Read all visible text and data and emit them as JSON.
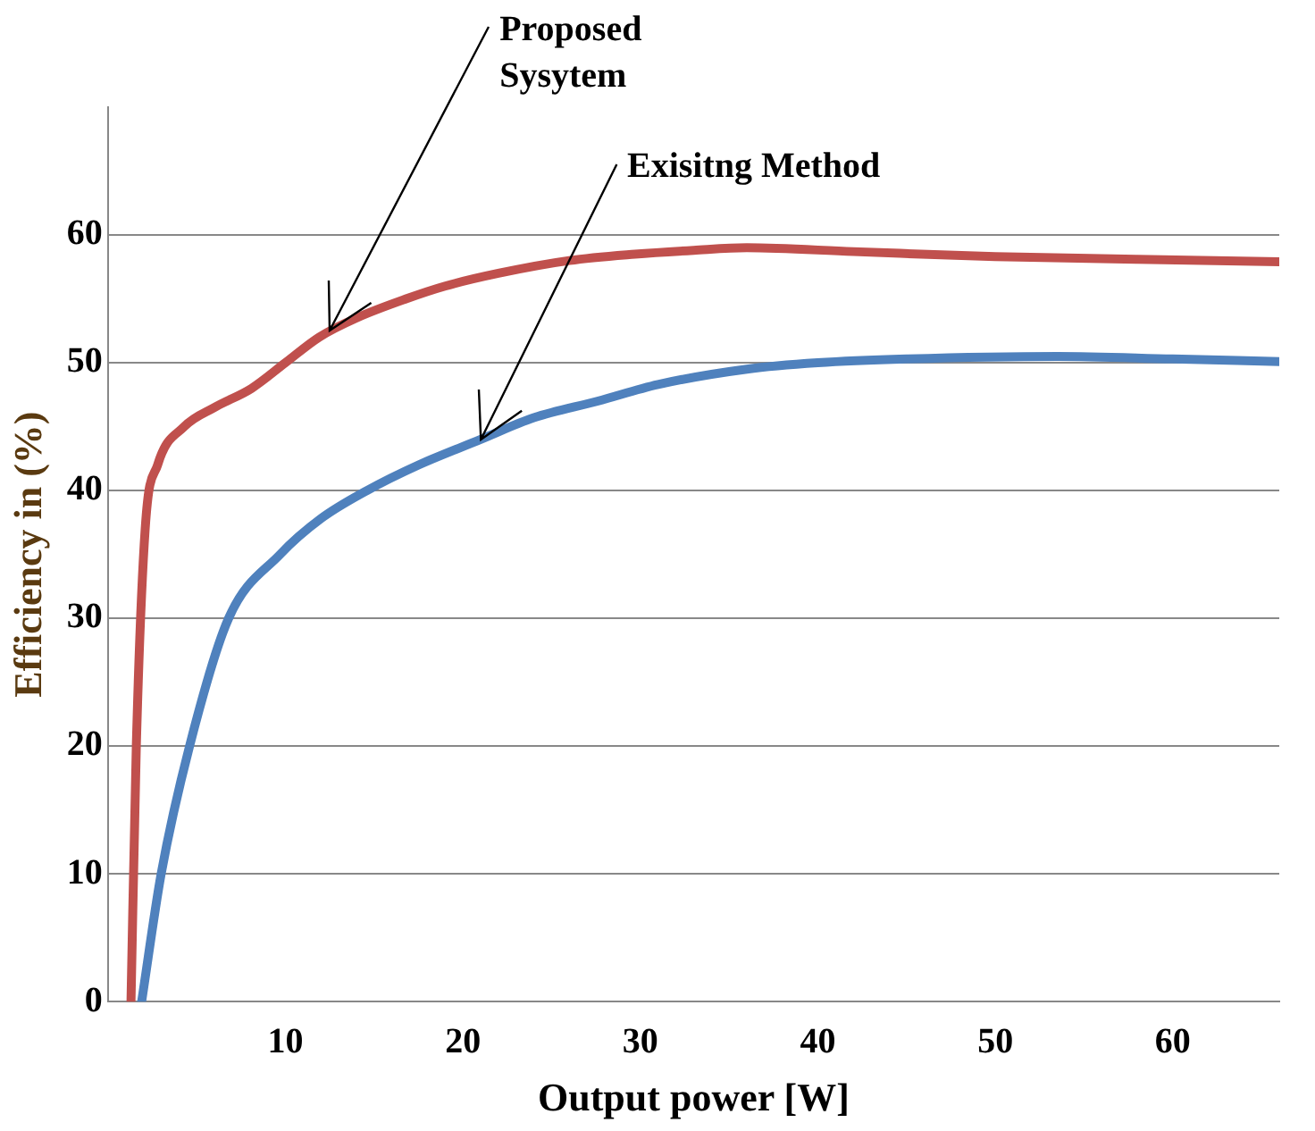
{
  "chart_data": {
    "type": "line",
    "xlabel": "Output power [W]",
    "ylabel": "Efficiency in (%)",
    "xlim": [
      0,
      66
    ],
    "xticks": [
      10,
      20,
      30,
      40,
      50,
      60
    ],
    "ylim": [
      0,
      70
    ],
    "yticks": [
      0,
      10,
      20,
      30,
      40,
      50,
      60
    ],
    "grid": "y",
    "legend": false,
    "marker": "none",
    "line_style": "solid",
    "series": [
      {
        "color": "#c0504d",
        "x": [
          1.3,
          1.6,
          2.1,
          2.8,
          4.3,
          6,
          8.1,
          10,
          11.9,
          14,
          16.8,
          19,
          22,
          26,
          29.7,
          33,
          36,
          42,
          50,
          58,
          66
        ],
        "values": [
          0,
          20,
          37,
          42,
          45,
          46.5,
          48,
          50,
          52,
          53.5,
          55,
          56,
          57,
          58,
          58.5,
          58.8,
          59,
          58.7,
          58.3,
          58.1,
          57.9
        ]
      },
      {
        "color": "#4f81bd",
        "x": [
          1.9,
          3,
          4.6,
          6.8,
          9.7,
          12,
          14.6,
          17.5,
          21,
          24,
          27.6,
          31,
          36,
          40,
          45,
          53.5,
          60,
          66
        ],
        "values": [
          0,
          10,
          20,
          30,
          35,
          37.8,
          40,
          42,
          44,
          45.7,
          47,
          48.3,
          49.5,
          50,
          50.3,
          50.5,
          50.3,
          50.1
        ]
      }
    ],
    "annotations": [
      {
        "text": "Proposed\nSysytem",
        "x": 12.5,
        "y": 52.5
      },
      {
        "text": "Exisitng Method",
        "x": 21,
        "y": 44
      }
    ]
  }
}
